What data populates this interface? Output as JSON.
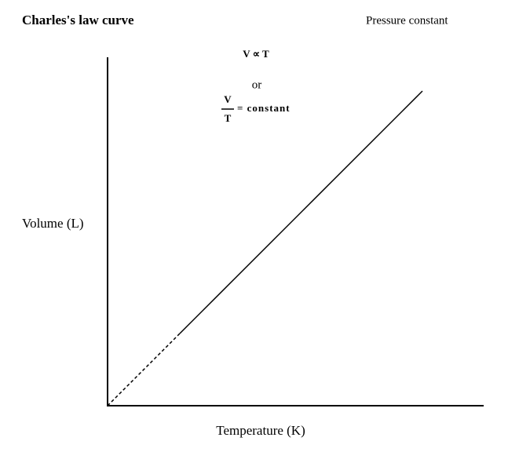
{
  "title": "Charles's law curve",
  "condition": "Pressure constant",
  "formula": {
    "proportion": "V ∝ T",
    "or": "or",
    "numerator": "V",
    "denominator": "T",
    "equals": "= constant"
  },
  "axes": {
    "y_label": "Volume (L)",
    "x_label": "Temperature (K)"
  }
}
